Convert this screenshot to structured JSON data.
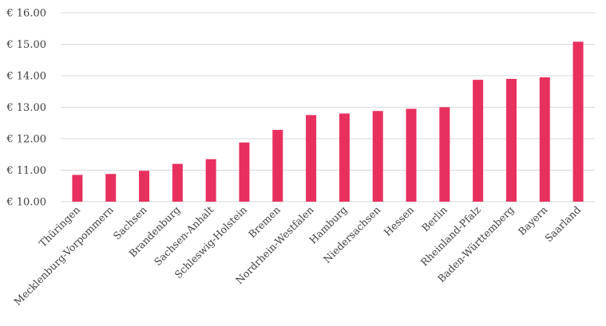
{
  "chart_data": {
    "type": "bar",
    "title": "",
    "xlabel": "",
    "ylabel": "",
    "ylim": [
      10,
      16
    ],
    "yticks": [
      10,
      11,
      12,
      13,
      14,
      15,
      16
    ],
    "ytick_labels": [
      "€ 10.00",
      "€ 11.00",
      "€ 12.00",
      "€ 13.00",
      "€ 14.00",
      "€ 15.00",
      "€ 16.00"
    ],
    "grid": true,
    "bar_color": "#e8305f",
    "categories": [
      "Thüringen",
      "Mecklenburg-Vorpommern",
      "Sachsen",
      "Brandenburg",
      "Sachsen-Anhalt",
      "Schleswig-Holstein",
      "Bremen",
      "Nordrhein-Westfalen",
      "Hamburg",
      "Niedersachsen",
      "Hessen",
      "Berlin",
      "Rheinland-Pfalz",
      "Baden-Württemberg",
      "Bayern",
      "Saarland"
    ],
    "values": [
      10.85,
      10.88,
      10.98,
      11.2,
      11.35,
      11.88,
      12.28,
      12.75,
      12.8,
      12.88,
      12.95,
      13.0,
      13.87,
      13.9,
      13.95,
      15.08
    ]
  }
}
